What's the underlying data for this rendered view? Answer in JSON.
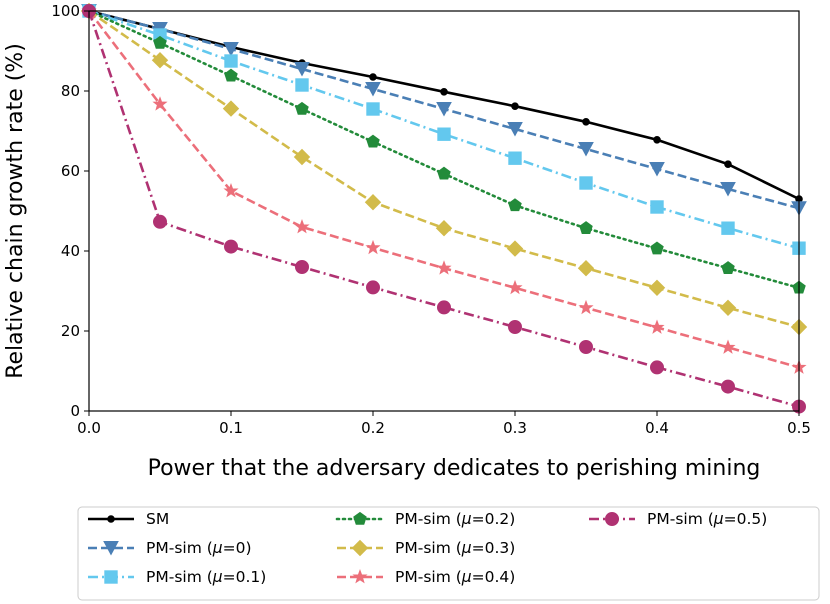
{
  "chart_data": {
    "type": "line",
    "title": "",
    "xlabel": "Power that the adversary dedicates to perishing mining",
    "ylabel": "Relative chain growth rate (%)",
    "xlim": [
      0,
      0.5
    ],
    "ylim": [
      0,
      100
    ],
    "xticks": [
      "0.0",
      "0.1",
      "0.2",
      "0.3",
      "0.4",
      "0.5"
    ],
    "yticks": [
      "0",
      "20",
      "40",
      "60",
      "80",
      "100"
    ],
    "x": [
      0,
      0.05,
      0.1,
      0.15,
      0.2,
      0.25,
      0.3,
      0.35,
      0.4,
      0.45,
      0.5
    ],
    "legend_position": "bottom (outside plot)",
    "series": [
      {
        "name": "SM",
        "mu_label": "",
        "color": "#000000",
        "linestyle": "solid",
        "marker": "point",
        "values": [
          100,
          95.5,
          91,
          87,
          83.5,
          79.8,
          76.2,
          72.3,
          67.8,
          61.7,
          53
        ]
      },
      {
        "name": "PM-sim (",
        "mu_label": "0",
        "color": "#4a7fb5",
        "linestyle": "dashed",
        "marker": "triangle_down",
        "values": [
          100,
          95.5,
          90.5,
          85.5,
          80.5,
          75.5,
          70.5,
          65.5,
          60.5,
          55.5,
          50.7
        ]
      },
      {
        "name": "PM-sim (",
        "mu_label": "0.1",
        "color": "#63c8ee",
        "linestyle": "dashdot",
        "marker": "square",
        "values": [
          100,
          94,
          87.5,
          81.5,
          75.5,
          69.2,
          63.2,
          57,
          51,
          45.7,
          40.7
        ]
      },
      {
        "name": "PM-sim (",
        "mu_label": "0.2",
        "color": "#238b3a",
        "linestyle": "dotted",
        "marker": "pentagon",
        "values": [
          100,
          92,
          83.8,
          75.5,
          67.3,
          59.3,
          51.4,
          45.7,
          40.6,
          35.7,
          30.8
        ]
      },
      {
        "name": "PM-sim (",
        "mu_label": "0.3",
        "color": "#d2bb4a",
        "linestyle": "dashed",
        "marker": "diamond",
        "values": [
          100,
          87.7,
          75.6,
          63.5,
          52.2,
          45.7,
          40.6,
          35.7,
          30.8,
          25.8,
          21
        ]
      },
      {
        "name": "PM-sim (",
        "mu_label": "0.4",
        "color": "#ec6f7a",
        "linestyle": "dashed",
        "marker": "star",
        "values": [
          100,
          76.7,
          55,
          46,
          40.8,
          35.7,
          30.8,
          25.8,
          20.9,
          15.9,
          10.9
        ]
      },
      {
        "name": "PM-sim (",
        "mu_label": "0.5",
        "color": "#b03272",
        "linestyle": "dashdot",
        "marker": "circle",
        "values": [
          100,
          47.3,
          41.1,
          36,
          30.9,
          25.9,
          21,
          16,
          10.9,
          6.1,
          1.1
        ]
      }
    ]
  }
}
